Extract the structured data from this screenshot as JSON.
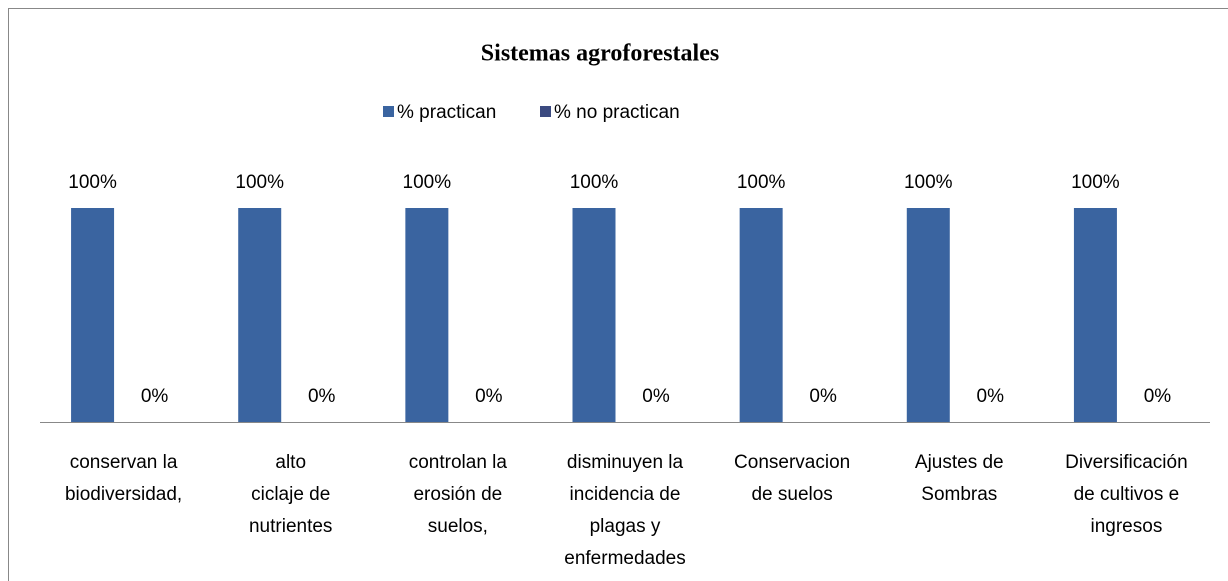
{
  "chart_data": {
    "type": "bar",
    "title": "Sistemas agroforestales",
    "categories": [
      [
        "conservan la",
        "biodiversidad,"
      ],
      [
        "alto",
        "ciclaje de",
        "nutrientes"
      ],
      [
        "controlan la",
        "erosión de",
        "suelos,"
      ],
      [
        "disminuyen la",
        "incidencia de",
        "plagas y",
        "enfermedades"
      ],
      [
        "Conservacion",
        "de suelos"
      ],
      [
        "Ajustes de",
        "Sombras"
      ],
      [
        "Diversificación",
        "de cultivos e",
        "ingresos"
      ]
    ],
    "series": [
      {
        "name": "% practican",
        "color": "#3a64a0",
        "values": [
          100,
          100,
          100,
          100,
          100,
          100,
          100
        ],
        "value_labels": [
          "100%",
          "100%",
          "100%",
          "100%",
          "100%",
          "100%",
          "100%"
        ]
      },
      {
        "name": "% no practican",
        "color": "#3b4a80",
        "values": [
          0,
          0,
          0,
          0,
          0,
          0,
          0
        ],
        "value_labels": [
          "0%",
          "0%",
          "0%",
          "0%",
          "0%",
          "0%",
          "0%"
        ]
      }
    ],
    "ylim": [
      0,
      100
    ],
    "legend": "top"
  }
}
